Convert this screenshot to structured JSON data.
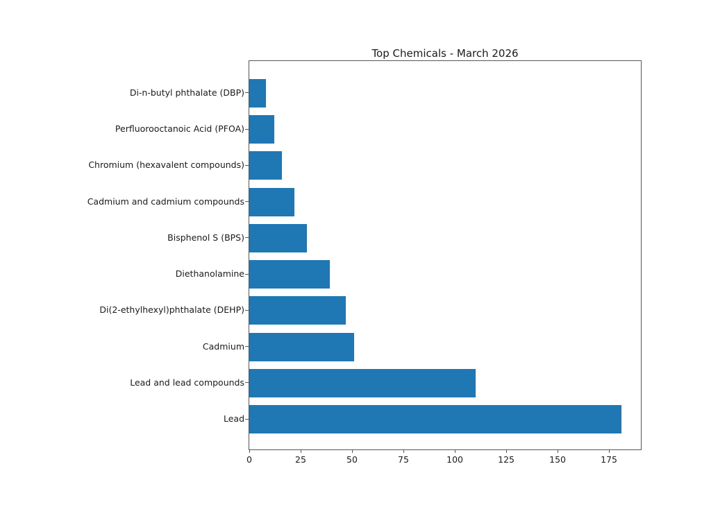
{
  "chart_data": {
    "type": "bar",
    "orientation": "horizontal",
    "title": "Top Chemicals - March 2026",
    "categories": [
      "Di-n-butyl phthalate (DBP)",
      "Perfluorooctanoic Acid (PFOA)",
      "Chromium (hexavalent compounds)",
      "Cadmium and cadmium compounds",
      "Bisphenol S (BPS)",
      "Diethanolamine",
      "Di(2-ethylhexyl)phthalate (DEHP)",
      "Cadmium",
      "Lead and lead compounds",
      "Lead"
    ],
    "values": [
      8,
      12,
      16,
      22,
      28,
      39,
      47,
      51,
      110,
      181
    ],
    "xticks": [
      0,
      25,
      50,
      75,
      100,
      125,
      150,
      175
    ],
    "xlim": [
      0,
      190.5
    ],
    "ylim_note": "categories listed top to bottom as rendered",
    "xlabel": "",
    "ylabel": "",
    "legend": null,
    "grid": false,
    "bar_color": "#1f77b4",
    "spine_color": "#555555",
    "text_color": "#1a1a1a",
    "background_color": "#ffffff"
  }
}
